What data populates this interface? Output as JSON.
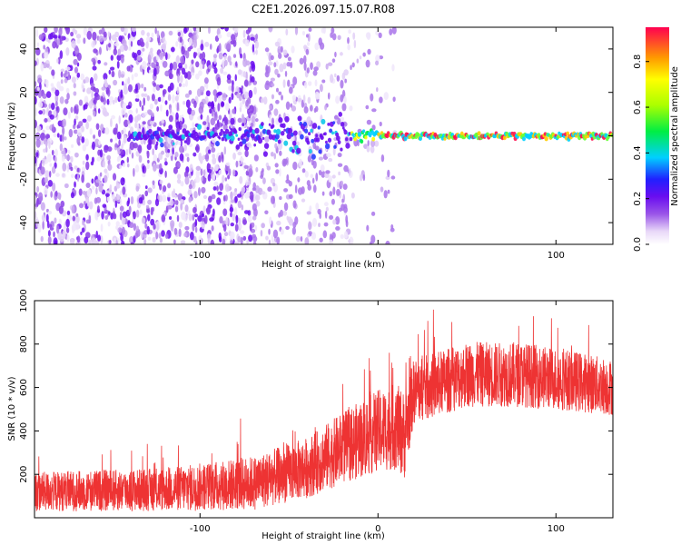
{
  "chart_data": [
    {
      "type": "heatmap",
      "title": "C2E1.2026.097.15.07.R08",
      "xlabel": "Height of straight line (km)",
      "ylabel": "Frequency (Hz)",
      "xlim": [
        -193,
        132
      ],
      "ylim": [
        -50,
        50
      ],
      "x_ticks": [
        -100,
        0,
        100
      ],
      "x_tick_labels": [
        "-100",
        "0",
        "100"
      ],
      "y_ticks": [
        -40,
        -20,
        0,
        20,
        40
      ],
      "y_tick_labels": [
        "-40",
        "-20",
        "0",
        "20",
        "40"
      ],
      "colorbar": {
        "label": "Normalized spectral amplitude",
        "range": [
          0.0,
          0.95
        ],
        "ticks": [
          0.0,
          0.2,
          0.4,
          0.6,
          0.8
        ],
        "tick_labels": [
          "0.0",
          "0.2",
          "0.4",
          "0.6",
          "0.8"
        ]
      },
      "description_points": {
        "scatter_region_x": [
          -193,
          -15
        ],
        "line_onset_km": -15,
        "line_frequency_hz": 0,
        "high_amplitude_segment_x": [
          0,
          132
        ]
      }
    },
    {
      "type": "line",
      "title": "",
      "xlabel": "Height of straight line (km)",
      "ylabel": "SNR (10 * v/v)",
      "xlim": [
        -193,
        132
      ],
      "ylim": [
        0,
        1000
      ],
      "x_ticks": [
        -100,
        0,
        100
      ],
      "x_tick_labels": [
        "-100",
        "0",
        "100"
      ],
      "y_ticks": [
        200,
        400,
        600,
        800,
        1000
      ],
      "y_tick_labels": [
        "200",
        "400",
        "600",
        "800",
        "1000"
      ],
      "color": "#ee3333",
      "trend": {
        "x": [
          -193,
          -120,
          -70,
          -40,
          -20,
          0,
          10,
          15,
          20,
          50,
          80,
          110,
          132
        ],
        "baseline": [
          120,
          130,
          160,
          230,
          320,
          400,
          420,
          380,
          580,
          660,
          660,
          630,
          600
        ],
        "spread": [
          180,
          200,
          250,
          280,
          330,
          380,
          400,
          400,
          300,
          300,
          300,
          280,
          260
        ]
      }
    }
  ]
}
